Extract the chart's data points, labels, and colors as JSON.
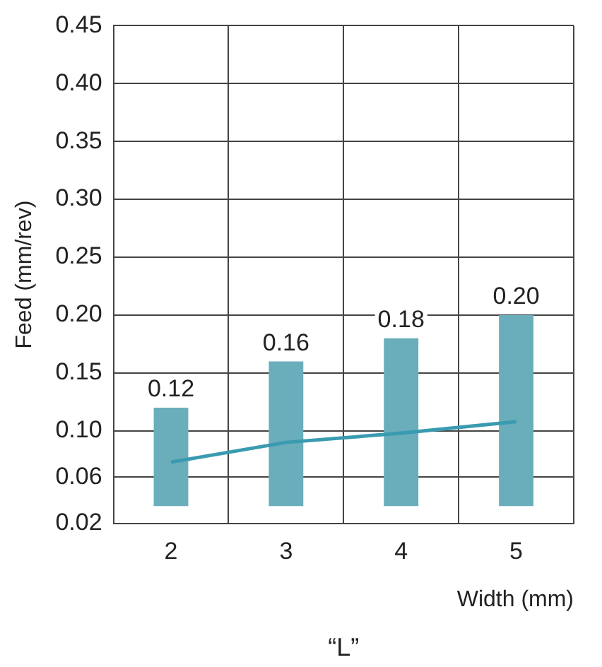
{
  "chart_data": {
    "type": "bar",
    "xlabel": "Width (mm)",
    "ylabel": "Feed (mm/rev)",
    "categories": [
      "2",
      "3",
      "4",
      "5"
    ],
    "series": [
      {
        "color": "#6aaebb",
        "base": [
          0.035,
          0.035,
          0.035,
          0.035
        ],
        "values": [
          0.085,
          0.125,
          0.145,
          0.165
        ]
      },
      {
        "type": "line",
        "color": "#3a9bb0",
        "values": [
          0.073,
          0.09,
          0.098,
          0.108
        ],
        "marker": "none",
        "line_style": "solid"
      }
    ],
    "ylim": [
      0.02,
      0.45
    ],
    "yticks": [
      0.02,
      0.06,
      {
        "value": 0.1,
        "label": "0.10"
      },
      0.15,
      {
        "value": 0.2,
        "label": "0.20"
      },
      0.25,
      {
        "value": 0.3,
        "label": "0.30"
      },
      0.35,
      {
        "value": 0.4,
        "label": "0.40"
      },
      0.45
    ],
    "grid": true,
    "legend": false,
    "annotations": [
      {
        "text": "0.12",
        "x": "2",
        "y": 0.12
      },
      {
        "text": "0.16",
        "x": "3",
        "y": 0.16
      },
      {
        "text": "0.18",
        "x": "4",
        "y": 0.18
      },
      {
        "text": "0.20",
        "x": "5",
        "y": 0.2
      },
      "“L”"
    ]
  }
}
